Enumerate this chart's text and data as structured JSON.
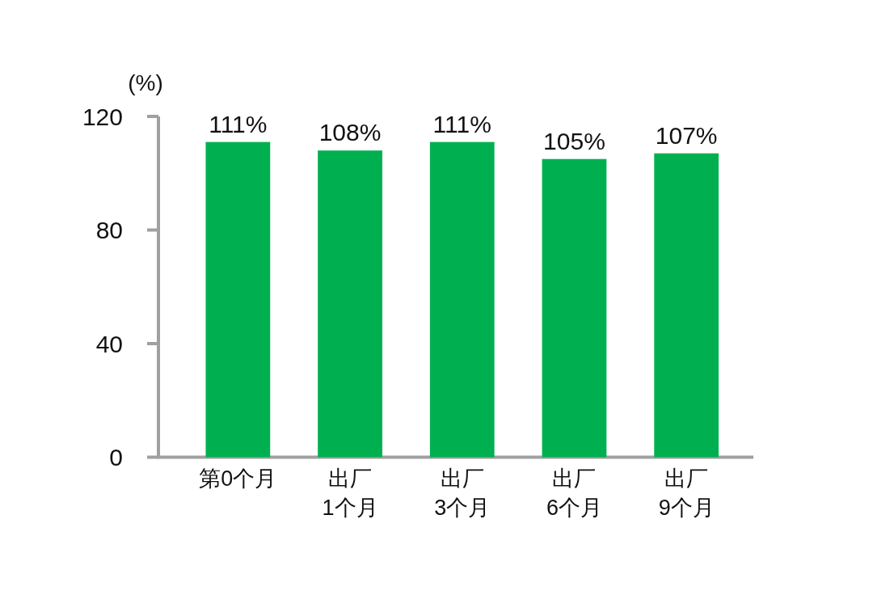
{
  "chart_data": {
    "type": "bar",
    "ylabel": "(%)",
    "categories": [
      "第0个月",
      "出厂\n1个月",
      "出厂\n3个月",
      "出厂\n6个月",
      "出厂\n9个月"
    ],
    "values": [
      111,
      108,
      111,
      105,
      107
    ],
    "value_labels": [
      "111%",
      "108%",
      "111%",
      "105%",
      "107%"
    ],
    "color": "#00b050",
    "ylim": [
      0,
      120
    ],
    "yticks": [
      0,
      40,
      80,
      120
    ]
  }
}
